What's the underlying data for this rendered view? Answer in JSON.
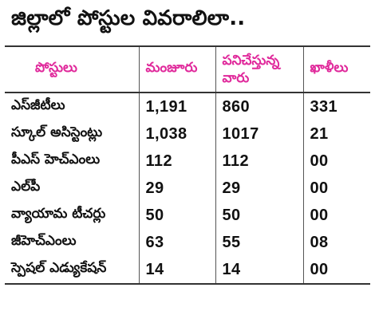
{
  "title": "జిల్లాలో పోస్టుల వివరాలిలా..",
  "colors": {
    "header_text": "#e0299b",
    "body_text": "#111111",
    "rule": "#333333"
  },
  "table": {
    "headers": [
      "పోస్టులు",
      "మంజూరు",
      "పనిచేస్తున్న వారు",
      "ఖాళీలు"
    ],
    "rows": [
      {
        "post": "ఎస్‌జీటీలు",
        "sanctioned": "1,191",
        "working": "860",
        "vacancies": "331"
      },
      {
        "post": "స్కూల్ అసిస్టెంట్లు",
        "sanctioned": "1,038",
        "working": "1017",
        "vacancies": "21"
      },
      {
        "post": "పీఎస్ హెచ్‌ఎంలు",
        "sanctioned": "112",
        "working": "112",
        "vacancies": "00"
      },
      {
        "post": "ఎల్‌పీ",
        "sanctioned": "29",
        "working": "29",
        "vacancies": "00"
      },
      {
        "post": "వ్యాయామ టీచర్లు",
        "sanctioned": "50",
        "working": "50",
        "vacancies": "00"
      },
      {
        "post": "జీహెచ్‌ఎంలు",
        "sanctioned": "63",
        "working": "55",
        "vacancies": "08"
      },
      {
        "post": "స్పెషల్ ఎడ్యుకేషన్",
        "sanctioned": "14",
        "working": "14",
        "vacancies": "00"
      }
    ]
  }
}
